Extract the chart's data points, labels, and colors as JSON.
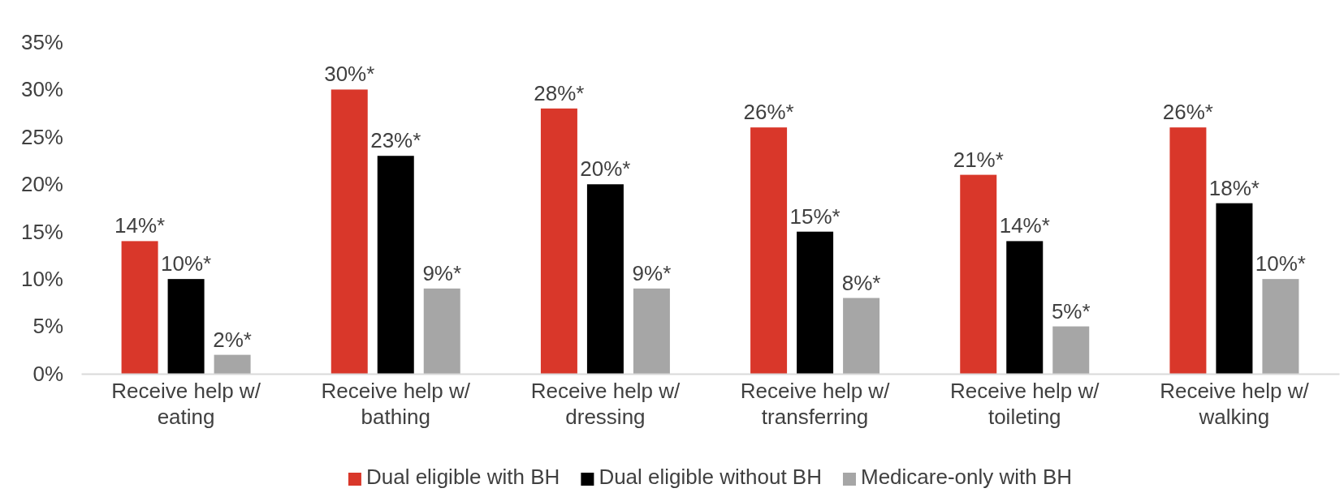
{
  "chart_data": {
    "type": "bar",
    "categories": [
      "Receive help w/ eating",
      "Receive help w/ bathing",
      "Receive help w/ dressing",
      "Receive help w/ transferring",
      "Receive help w/ toileting",
      "Receive help w/ walking"
    ],
    "series": [
      {
        "name": "Dual eligible with BH",
        "color": "#d9372a",
        "values": [
          14,
          30,
          28,
          26,
          21,
          26
        ],
        "value_labels": [
          "14%*",
          "30%*",
          "28%*",
          "26%*",
          "21%*",
          "26%*"
        ]
      },
      {
        "name": "Dual eligible without BH",
        "color": "#000000",
        "values": [
          10,
          23,
          20,
          15,
          14,
          18
        ],
        "value_labels": [
          "10%*",
          "23%*",
          "20%*",
          "15%*",
          "14%*",
          "18%*"
        ]
      },
      {
        "name": "Medicare-only with BH",
        "color": "#a6a6a6",
        "values": [
          2,
          9,
          9,
          8,
          5,
          10
        ],
        "value_labels": [
          "2%*",
          "9%*",
          "9%*",
          "8%*",
          "5%*",
          "10%*"
        ]
      }
    ],
    "ylim": [
      0,
      35
    ],
    "yticks": [
      {
        "value": 0,
        "label": "0%"
      },
      {
        "value": 5,
        "label": "5%"
      },
      {
        "value": 10,
        "label": "10%"
      },
      {
        "value": 15,
        "label": "15%"
      },
      {
        "value": 20,
        "label": "20%"
      },
      {
        "value": 25,
        "label": "25%"
      },
      {
        "value": 30,
        "label": "30%"
      },
      {
        "value": 35,
        "label": "35%"
      }
    ],
    "legend": "bottom"
  }
}
